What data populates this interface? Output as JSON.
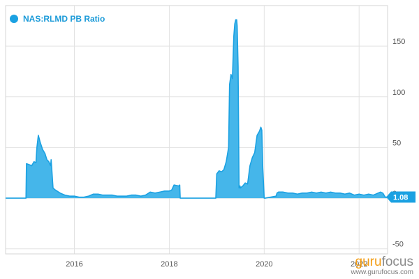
{
  "legend": {
    "label": "NAS:RLMD PB Ratio",
    "color": "#1ba1e2"
  },
  "last_value_badge": "1.08",
  "watermark": {
    "part1": "guru",
    "part2": "focus",
    "site": "www.gurufocus.com"
  },
  "colors": {
    "series": "#1ba1e2",
    "fill": "#45b6ea",
    "grid": "#e2e2e2",
    "axis_text": "#555555",
    "badge_bg": "#1ba1e2"
  },
  "chart_data": {
    "type": "area",
    "title": "",
    "xlabel": "",
    "ylabel": "",
    "xlim": [
      2014.55,
      2022.6
    ],
    "ylim": [
      -55,
      190
    ],
    "x_ticks": [
      2016,
      2018,
      2020,
      2022
    ],
    "y_ticks": [
      -50,
      0,
      50,
      100,
      150
    ],
    "grid": true,
    "legend_position": "top-left",
    "y_axis_side": "right",
    "series": [
      {
        "name": "NAS:RLMD PB Ratio",
        "x": [
          2014.55,
          2014.98,
          2014.99,
          2015.05,
          2015.1,
          2015.15,
          2015.19,
          2015.21,
          2015.24,
          2015.28,
          2015.33,
          2015.38,
          2015.42,
          2015.46,
          2015.5,
          2015.51,
          2015.55,
          2015.6,
          2015.7,
          2015.8,
          2015.9,
          2016.0,
          2016.1,
          2016.2,
          2016.3,
          2016.4,
          2016.5,
          2016.6,
          2016.7,
          2016.8,
          2016.9,
          2017.0,
          2017.1,
          2017.2,
          2017.3,
          2017.4,
          2017.5,
          2017.6,
          2017.7,
          2017.8,
          2017.9,
          2018.0,
          2018.05,
          2018.1,
          2018.2,
          2018.22,
          2018.23,
          2018.98,
          2019.0,
          2019.05,
          2019.1,
          2019.15,
          2019.2,
          2019.25,
          2019.27,
          2019.3,
          2019.33,
          2019.36,
          2019.38,
          2019.4,
          2019.42,
          2019.43,
          2019.45,
          2019.47,
          2019.49,
          2019.5,
          2019.52,
          2019.55,
          2019.6,
          2019.65,
          2019.7,
          2019.75,
          2019.8,
          2019.85,
          2019.9,
          2019.93,
          2019.95,
          2019.97,
          2020.0,
          2020.02,
          2020.25,
          2020.27,
          2020.3,
          2020.4,
          2020.5,
          2020.6,
          2020.7,
          2020.8,
          2020.9,
          2021.0,
          2021.1,
          2021.2,
          2021.3,
          2021.4,
          2021.5,
          2021.6,
          2021.7,
          2021.8,
          2021.9,
          2022.0,
          2022.1,
          2022.2,
          2022.3,
          2022.4,
          2022.45,
          2022.5,
          2022.55,
          2022.6
        ],
        "values": [
          0,
          0,
          34,
          33,
          32,
          36,
          35,
          50,
          62,
          55,
          48,
          44,
          38,
          36,
          32,
          38,
          10,
          8,
          5,
          3,
          2,
          2,
          1,
          1,
          2,
          4,
          4,
          3,
          3,
          3,
          2,
          2,
          2,
          3,
          3,
          2,
          3,
          6,
          5,
          6,
          7,
          7,
          8,
          13,
          12,
          13,
          0,
          0,
          24,
          27,
          26,
          28,
          36,
          50,
          112,
          122,
          118,
          160,
          172,
          176,
          176,
          170,
          130,
          10,
          12,
          10,
          11,
          12,
          15,
          14,
          32,
          40,
          45,
          62,
          66,
          70,
          67,
          30,
          0,
          0,
          2,
          5,
          6,
          6,
          5,
          5,
          4,
          5,
          5,
          6,
          5,
          6,
          5,
          6,
          5,
          5,
          4,
          5,
          3,
          4,
          3,
          4,
          3,
          5,
          6,
          5,
          1.08,
          1.08
        ]
      }
    ]
  }
}
